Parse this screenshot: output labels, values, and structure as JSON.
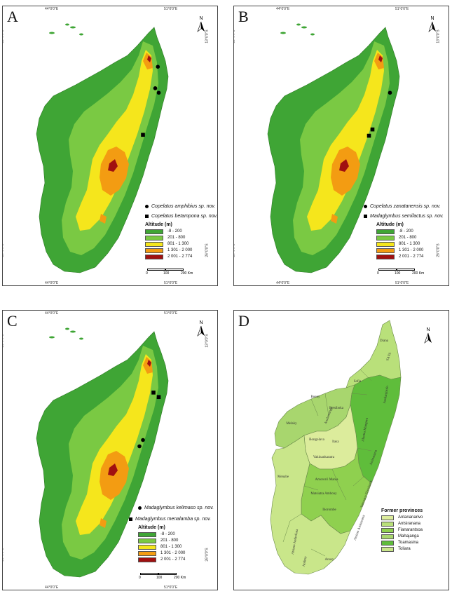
{
  "panels": [
    {
      "letter": "A",
      "species": [
        {
          "marker": "circle",
          "name": "Copelatus amphibius sp. nov."
        },
        {
          "marker": "square",
          "name": "Copelatus betampona sp. nov."
        }
      ],
      "points": [
        {
          "marker": "circle",
          "lon": 50.25,
          "lat": -14.1
        },
        {
          "marker": "circle",
          "lon": 50.1,
          "lat": -15.3
        },
        {
          "marker": "circle",
          "lon": 50.3,
          "lat": -15.55
        },
        {
          "marker": "square",
          "lon": 49.4,
          "lat": -17.9
        }
      ]
    },
    {
      "letter": "B",
      "species": [
        {
          "marker": "circle",
          "name": "Copelatus zanatanensis sp. nov."
        },
        {
          "marker": "square",
          "name": "Madaglymbus semifactus sp. nov."
        }
      ],
      "points": [
        {
          "marker": "circle",
          "lon": 50.3,
          "lat": -15.55
        },
        {
          "marker": "square",
          "lon": 49.3,
          "lat": -17.6
        },
        {
          "marker": "square",
          "lon": 49.1,
          "lat": -17.95
        }
      ]
    },
    {
      "letter": "C",
      "species": [
        {
          "marker": "circle",
          "name": "Madaglymbus kelimaso sp. nov."
        },
        {
          "marker": "square",
          "name": "Madaglymbus menalamba sp. nov."
        }
      ],
      "points": [
        {
          "marker": "square",
          "lon": 50.0,
          "lat": -15.3
        },
        {
          "marker": "square",
          "lon": 50.3,
          "lat": -15.55
        },
        {
          "marker": "circle",
          "lon": 49.4,
          "lat": -17.95
        },
        {
          "marker": "circle",
          "lon": 49.2,
          "lat": -18.3
        }
      ]
    },
    {
      "letter": "D"
    }
  ],
  "coords": {
    "lon_west": "44°0'0\"E",
    "lon_east": "51°0'0\"E",
    "lat_north": "13°0'0\"S",
    "lat_south": "26°0'0\"S"
  },
  "north_label": "N",
  "altitude_legend": {
    "title": "Altitude (m)",
    "classes": [
      {
        "label": "-8 - 200",
        "color": "#3fa535"
      },
      {
        "label": "201 - 800",
        "color": "#7ac943"
      },
      {
        "label": "801 - 1 300",
        "color": "#f5e61c"
      },
      {
        "label": "1 301 - 2 000",
        "color": "#f39c12"
      },
      {
        "label": "2 001 - 2 774",
        "color": "#a01010"
      }
    ]
  },
  "scale": {
    "ticks": [
      "0",
      "100",
      "200 Km"
    ]
  },
  "province_legend": {
    "title": "Former provinces",
    "items": [
      {
        "label": "Antananarivo",
        "color": "#dcec9c"
      },
      {
        "label": "Antsiranana",
        "color": "#b9e07a"
      },
      {
        "label": "Fianarantsoa",
        "color": "#8fd04f"
      },
      {
        "label": "Mahajanga",
        "color": "#a8d66e"
      },
      {
        "label": "Toamasina",
        "color": "#5fbd3b"
      },
      {
        "label": "Toliara",
        "color": "#c9e68a"
      }
    ]
  },
  "regions": [
    "Diana",
    "SAVA",
    "Sofia",
    "Boeny",
    "Betsiboka",
    "Melaky",
    "Analamanga",
    "Bongolava",
    "Itasy",
    "Alaotra Mangoro",
    "Analanjirofo",
    "Vakinankaratra",
    "Menabe",
    "Amoron'i Mania",
    "Atsinanana",
    "Matsiatra Ambony",
    "Vatovavy Fitovinany",
    "Ihorombe",
    "Atsimo Atsinanana",
    "Atsimo Andrefana",
    "Anosy",
    "Androy"
  ]
}
